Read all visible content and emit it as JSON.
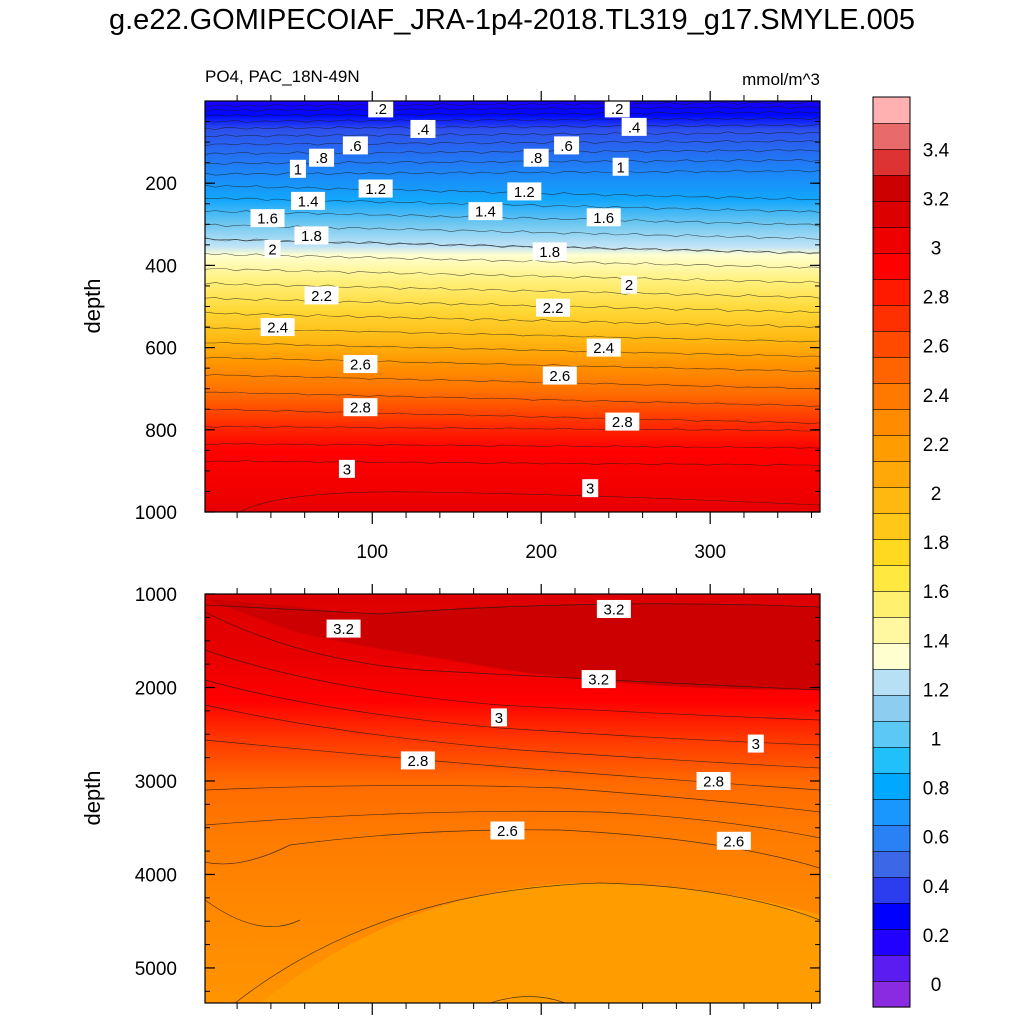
{
  "title": "g.e22.GOMIPECOIAF_JRA-1p4-2018.TL319_g17.SMYLE.005",
  "left_label": "PO4, PAC_18N-49N",
  "right_label": "mmol/m^3",
  "chart_data": [
    {
      "type": "contour",
      "panel": "upper",
      "variable": "PO4",
      "region": "PAC_18N-49N",
      "units": "mmol/m^3",
      "xlabel": "",
      "ylabel": "depth",
      "xlim": [
        1,
        365
      ],
      "ylim": [
        1000,
        0
      ],
      "xticks": [
        100,
        200,
        300
      ],
      "yticks": [
        200,
        400,
        600,
        800,
        1000
      ],
      "contour_labels": [
        {
          "text": ".2",
          "x": 105,
          "y": 18
        },
        {
          "text": ".2",
          "x": 245,
          "y": 18
        },
        {
          "text": ".4",
          "x": 130,
          "y": 68
        },
        {
          "text": ".4",
          "x": 255,
          "y": 63
        },
        {
          "text": ".6",
          "x": 90,
          "y": 108
        },
        {
          "text": ".6",
          "x": 215,
          "y": 108
        },
        {
          "text": ".8",
          "x": 70,
          "y": 138
        },
        {
          "text": ".8",
          "x": 197,
          "y": 138
        },
        {
          "text": "1",
          "x": 56,
          "y": 165
        },
        {
          "text": "1",
          "x": 247,
          "y": 160
        },
        {
          "text": "1.2",
          "x": 102,
          "y": 213
        },
        {
          "text": "1.2",
          "x": 190,
          "y": 220
        },
        {
          "text": "1.4",
          "x": 62,
          "y": 243
        },
        {
          "text": "1.4",
          "x": 167,
          "y": 268
        },
        {
          "text": "1.6",
          "x": 38,
          "y": 285
        },
        {
          "text": "1.6",
          "x": 237,
          "y": 283
        },
        {
          "text": "1.8",
          "x": 64,
          "y": 327
        },
        {
          "text": "1.8",
          "x": 205,
          "y": 366
        },
        {
          "text": "2",
          "x": 41,
          "y": 360
        },
        {
          "text": "2",
          "x": 252,
          "y": 447
        },
        {
          "text": "2.2",
          "x": 70,
          "y": 473
        },
        {
          "text": "2.2",
          "x": 207,
          "y": 503
        },
        {
          "text": "2.4",
          "x": 44,
          "y": 550
        },
        {
          "text": "2.4",
          "x": 237,
          "y": 600
        },
        {
          "text": "2.6",
          "x": 93,
          "y": 640
        },
        {
          "text": "2.6",
          "x": 211,
          "y": 668
        },
        {
          "text": "2.8",
          "x": 93,
          "y": 745
        },
        {
          "text": "2.8",
          "x": 248,
          "y": 780
        },
        {
          "text": "3",
          "x": 85,
          "y": 895
        },
        {
          "text": "3",
          "x": 229,
          "y": 942
        }
      ]
    },
    {
      "type": "contour",
      "panel": "lower",
      "variable": "PO4",
      "region": "PAC_18N-49N",
      "units": "mmol/m^3",
      "xlabel": "",
      "ylabel": "depth",
      "xlim": [
        1,
        365
      ],
      "ylim": [
        5375,
        1000
      ],
      "xticks": [
        100,
        200,
        300
      ],
      "yticks": [
        1000,
        2000,
        3000,
        4000,
        5000
      ],
      "contour_labels": [
        {
          "text": "3.2",
          "x": 83,
          "y": 1370
        },
        {
          "text": "3.2",
          "x": 243,
          "y": 1160
        },
        {
          "text": "3.2",
          "x": 234,
          "y": 1910
        },
        {
          "text": "3",
          "x": 175,
          "y": 2320
        },
        {
          "text": "3",
          "x": 327,
          "y": 2600
        },
        {
          "text": "2.8",
          "x": 127,
          "y": 2780
        },
        {
          "text": "2.8",
          "x": 302,
          "y": 3000
        },
        {
          "text": "2.6",
          "x": 180,
          "y": 3530
        },
        {
          "text": "2.6",
          "x": 314,
          "y": 3640
        }
      ]
    }
  ],
  "colorbar": {
    "levels": [
      0,
      0.2,
      0.4,
      0.6,
      0.8,
      1,
      1.2,
      1.4,
      1.6,
      1.8,
      2,
      2.2,
      2.4,
      2.6,
      2.8,
      3,
      3.2,
      3.4
    ],
    "labels": [
      "0",
      "0.2",
      "0.4",
      "0.6",
      "0.8",
      "1",
      "1.2",
      "1.4",
      "1.6",
      "1.8",
      "2",
      "2.2",
      "2.4",
      "2.6",
      "2.8",
      "3",
      "3.2",
      "3.4"
    ],
    "colors": [
      "#8a2be2",
      "#5a1cf0",
      "#2200ff",
      "#0000ff",
      "#2b3dee",
      "#3c68e8",
      "#2a80f5",
      "#1a96ff",
      "#00a8ff",
      "#22c0fa",
      "#5cc8f5",
      "#8ccdf0",
      "#b8e0f5",
      "#ffffd0",
      "#fff8a0",
      "#fff070",
      "#ffe840",
      "#ffd820",
      "#ffc818",
      "#ffb810",
      "#ffa808",
      "#ff9c00",
      "#ff8c00",
      "#ff7800",
      "#ff6400",
      "#ff4a00",
      "#ff3000",
      "#ff1a00",
      "#ff0000",
      "#ee0000",
      "#dd0000",
      "#cc0000",
      "#dd3333",
      "#e86a6a",
      "#ffb0b0"
    ]
  }
}
